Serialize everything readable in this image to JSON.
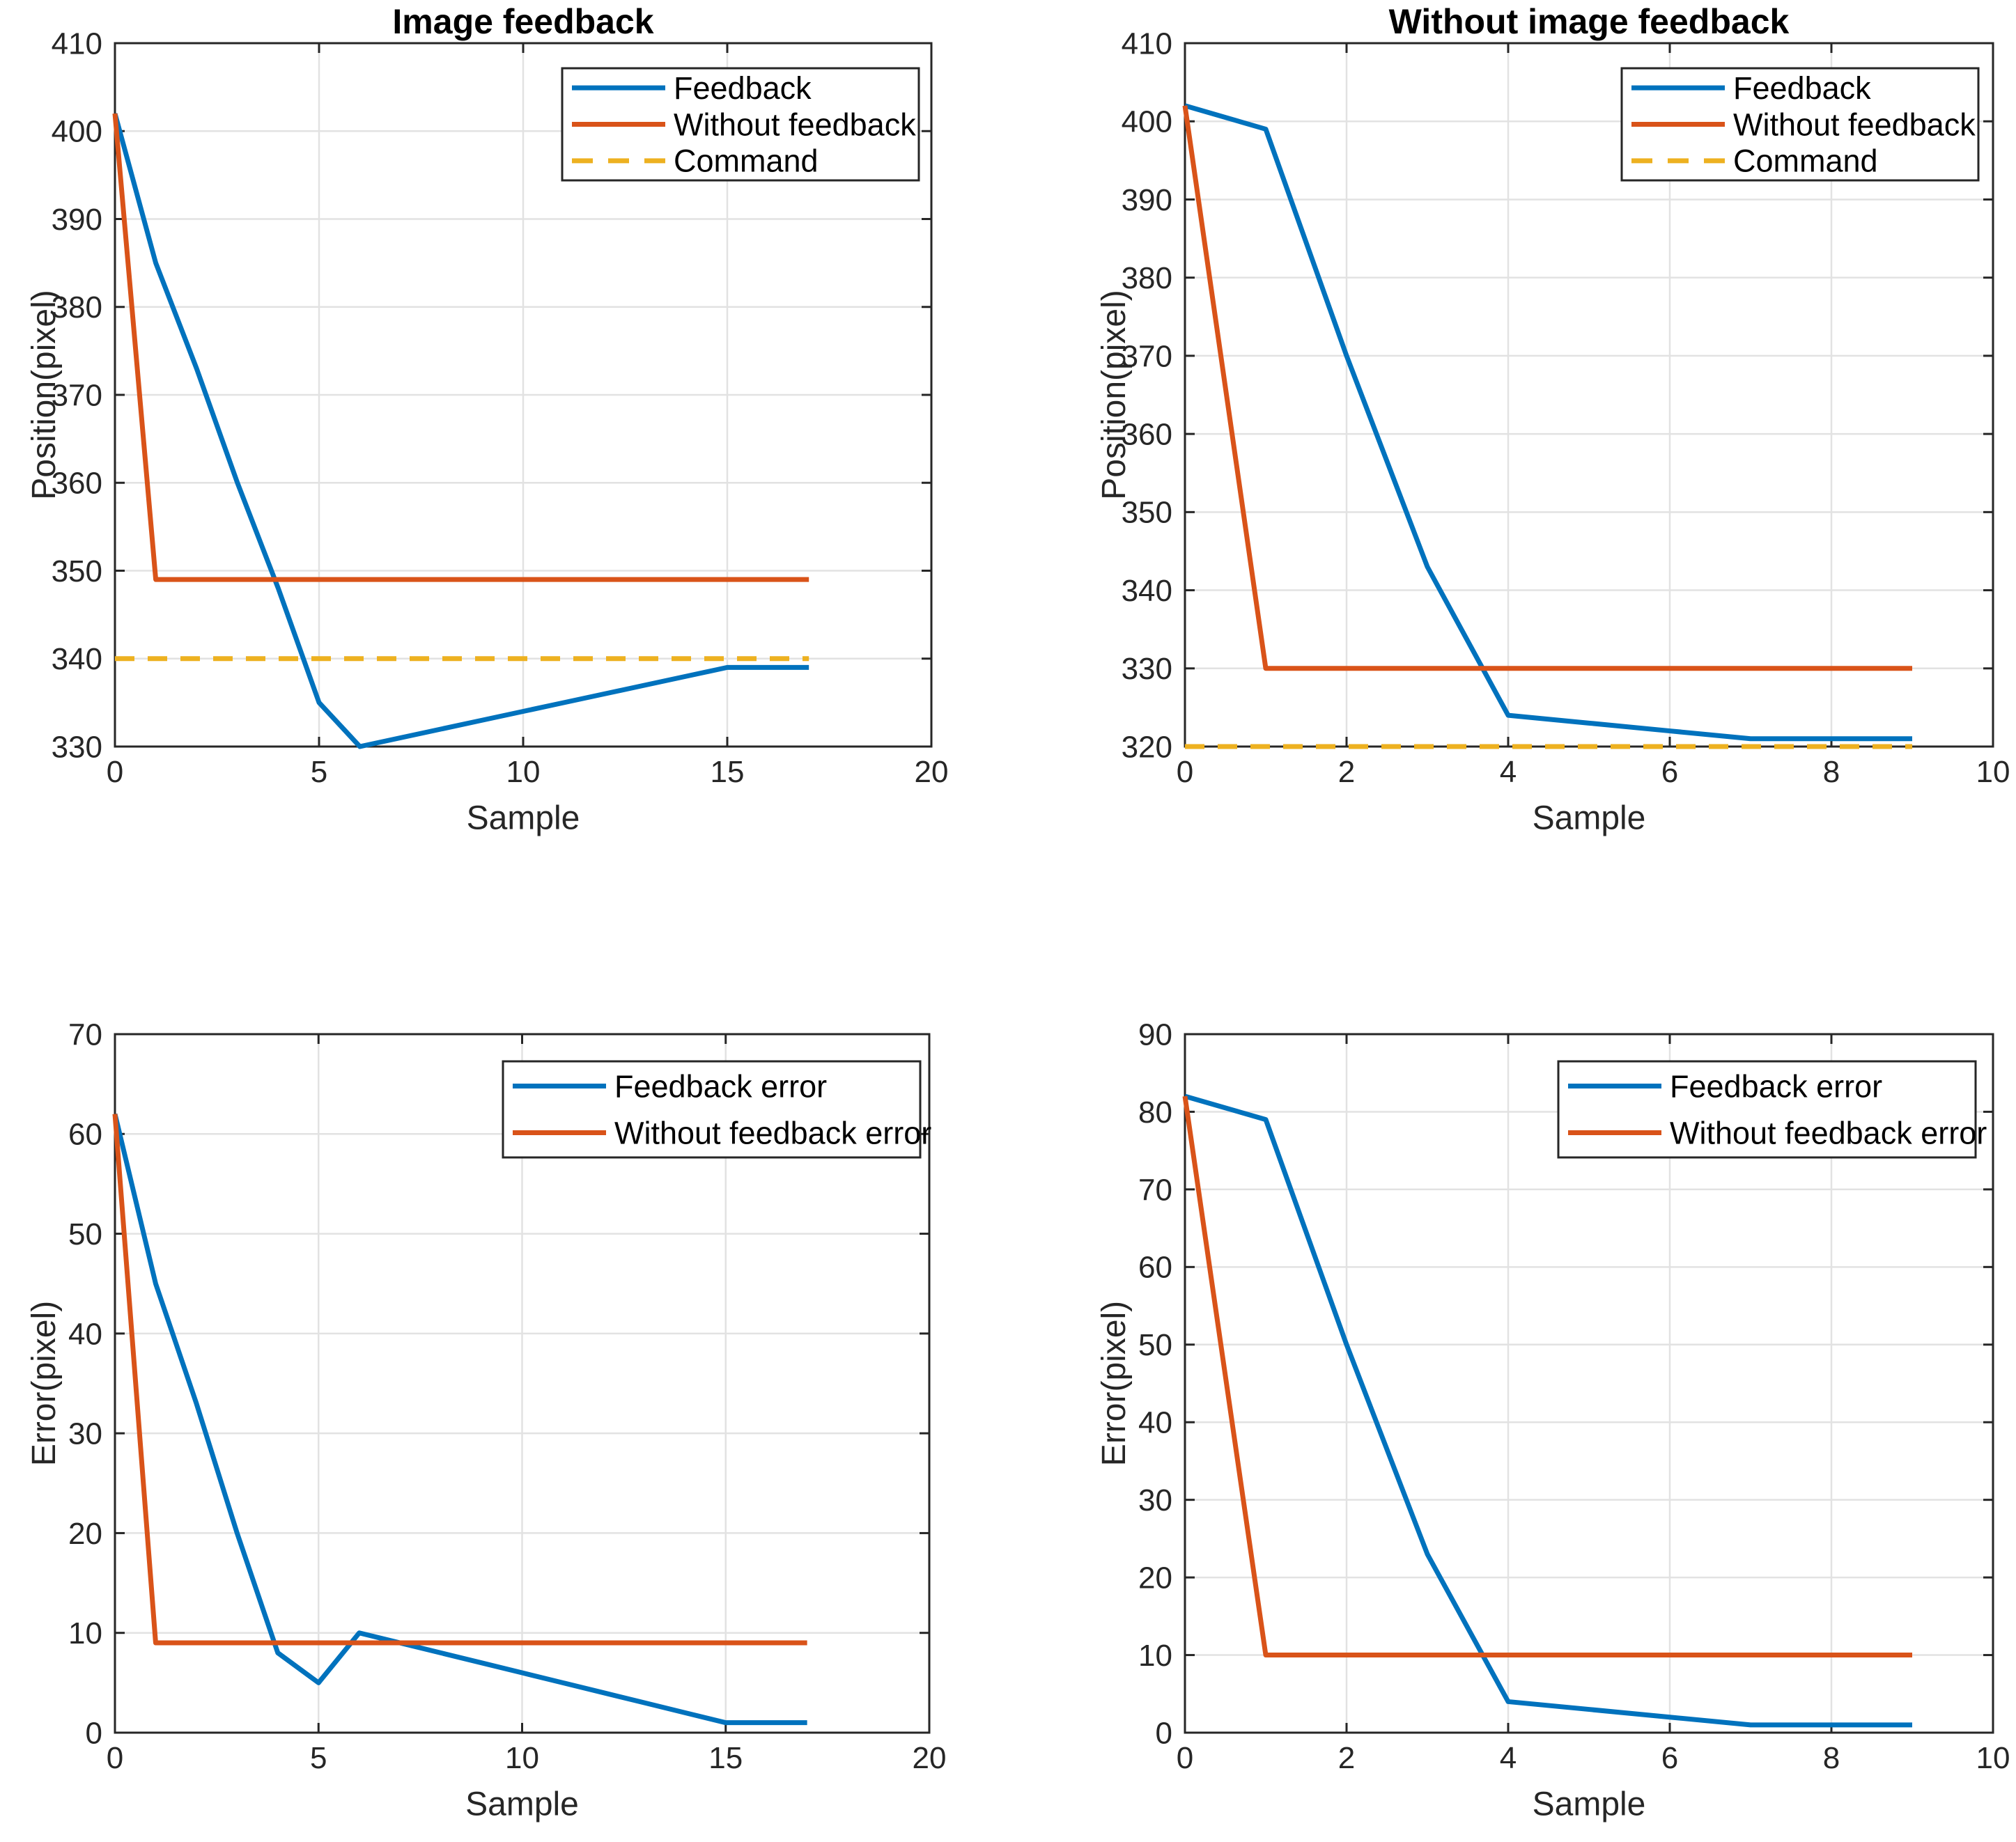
{
  "figure": {
    "background": "#ffffff"
  },
  "colors": {
    "blue": "#0072BD",
    "orange": "#D95319",
    "yellow": "#EDB120",
    "axis": "#262626",
    "grid": "#E2E2E2",
    "text": "#262626"
  },
  "chart_data": [
    {
      "id": "position-image-feedback",
      "type": "line",
      "title": "Image feedback",
      "xlabel": "Sample",
      "ylabel": "Position(pixel)",
      "xlim": [
        0,
        20
      ],
      "ylim": [
        330,
        410
      ],
      "xticks": [
        0,
        5,
        10,
        15,
        20
      ],
      "yticks": [
        330,
        340,
        350,
        360,
        370,
        380,
        390,
        400,
        410
      ],
      "grid": true,
      "legend_position": "northeast",
      "series": [
        {
          "name": "Feedback",
          "color": "blue",
          "dash": "solid",
          "x": [
            0,
            1,
            2,
            3,
            4,
            5,
            6,
            7,
            8,
            9,
            10,
            11,
            12,
            13,
            14,
            15,
            16,
            17
          ],
          "y": [
            402,
            385,
            373,
            360,
            348,
            335,
            330,
            331,
            332,
            333,
            334,
            335,
            336,
            337,
            338,
            339,
            339,
            339
          ]
        },
        {
          "name": "Without feedback",
          "color": "orange",
          "dash": "solid",
          "x": [
            0,
            1,
            2,
            3,
            4,
            5,
            6,
            7,
            8,
            9,
            10,
            11,
            12,
            13,
            14,
            15,
            16,
            17
          ],
          "y": [
            402,
            349,
            349,
            349,
            349,
            349,
            349,
            349,
            349,
            349,
            349,
            349,
            349,
            349,
            349,
            349,
            349,
            349
          ]
        },
        {
          "name": "Command",
          "color": "yellow",
          "dash": "dashed",
          "x": [
            0,
            1,
            2,
            3,
            4,
            5,
            6,
            7,
            8,
            9,
            10,
            11,
            12,
            13,
            14,
            15,
            16,
            17
          ],
          "y": [
            340,
            340,
            340,
            340,
            340,
            340,
            340,
            340,
            340,
            340,
            340,
            340,
            340,
            340,
            340,
            340,
            340,
            340
          ]
        }
      ]
    },
    {
      "id": "position-without-image-feedback",
      "type": "line",
      "title": "Without image feedback",
      "xlabel": "Sample",
      "ylabel": "Position(pixel)",
      "xlim": [
        0,
        10
      ],
      "ylim": [
        320,
        410
      ],
      "xticks": [
        0,
        2,
        4,
        6,
        8,
        10
      ],
      "yticks": [
        320,
        330,
        340,
        350,
        360,
        370,
        380,
        390,
        400,
        410
      ],
      "grid": true,
      "legend_position": "northeast",
      "series": [
        {
          "name": "Feedback",
          "color": "blue",
          "dash": "solid",
          "x": [
            0,
            1,
            2,
            3,
            4,
            5,
            6,
            7,
            8,
            9
          ],
          "y": [
            402,
            399,
            370,
            343,
            324,
            323,
            322,
            321,
            321,
            321
          ]
        },
        {
          "name": "Without feedback",
          "color": "orange",
          "dash": "solid",
          "x": [
            0,
            1,
            2,
            3,
            4,
            5,
            6,
            7,
            8,
            9
          ],
          "y": [
            402,
            330,
            330,
            330,
            330,
            330,
            330,
            330,
            330,
            330
          ]
        },
        {
          "name": "Command",
          "color": "yellow",
          "dash": "dashed",
          "x": [
            0,
            1,
            2,
            3,
            4,
            5,
            6,
            7,
            8,
            9
          ],
          "y": [
            320,
            320,
            320,
            320,
            320,
            320,
            320,
            320,
            320,
            320
          ]
        }
      ]
    },
    {
      "id": "error-image-feedback",
      "type": "line",
      "title": "",
      "xlabel": "Sample",
      "ylabel": "Error(pixel)",
      "xlim": [
        0,
        20
      ],
      "ylim": [
        0,
        70
      ],
      "xticks": [
        0,
        5,
        10,
        15,
        20
      ],
      "yticks": [
        0,
        10,
        20,
        30,
        40,
        50,
        60,
        70
      ],
      "grid": true,
      "legend_position": "northeast",
      "series": [
        {
          "name": "Feedback error",
          "color": "blue",
          "dash": "solid",
          "x": [
            0,
            1,
            2,
            3,
            4,
            5,
            6,
            7,
            8,
            9,
            10,
            11,
            12,
            13,
            14,
            15,
            16,
            17
          ],
          "y": [
            62,
            45,
            33,
            20,
            8,
            5,
            10,
            9,
            8,
            7,
            6,
            5,
            4,
            3,
            2,
            1,
            1,
            1
          ]
        },
        {
          "name": "Without feedback error",
          "color": "orange",
          "dash": "solid",
          "x": [
            0,
            1,
            2,
            3,
            4,
            5,
            6,
            7,
            8,
            9,
            10,
            11,
            12,
            13,
            14,
            15,
            16,
            17
          ],
          "y": [
            62,
            9,
            9,
            9,
            9,
            9,
            9,
            9,
            9,
            9,
            9,
            9,
            9,
            9,
            9,
            9,
            9,
            9
          ]
        }
      ]
    },
    {
      "id": "error-without-image-feedback",
      "type": "line",
      "title": "",
      "xlabel": "Sample",
      "ylabel": "Error(pixel)",
      "xlim": [
        0,
        10
      ],
      "ylim": [
        0,
        90
      ],
      "xticks": [
        0,
        2,
        4,
        6,
        8,
        10
      ],
      "yticks": [
        0,
        10,
        20,
        30,
        40,
        50,
        60,
        70,
        80,
        90
      ],
      "grid": true,
      "legend_position": "northeast",
      "series": [
        {
          "name": "Feedback error",
          "color": "blue",
          "dash": "solid",
          "x": [
            0,
            1,
            2,
            3,
            4,
            5,
            6,
            7,
            8,
            9
          ],
          "y": [
            82,
            79,
            50,
            23,
            4,
            3,
            2,
            1,
            1,
            1
          ]
        },
        {
          "name": "Without feedback error",
          "color": "orange",
          "dash": "solid",
          "x": [
            0,
            1,
            2,
            3,
            4,
            5,
            6,
            7,
            8,
            9
          ],
          "y": [
            82,
            10,
            10,
            10,
            10,
            10,
            10,
            10,
            10,
            10
          ]
        }
      ]
    }
  ]
}
